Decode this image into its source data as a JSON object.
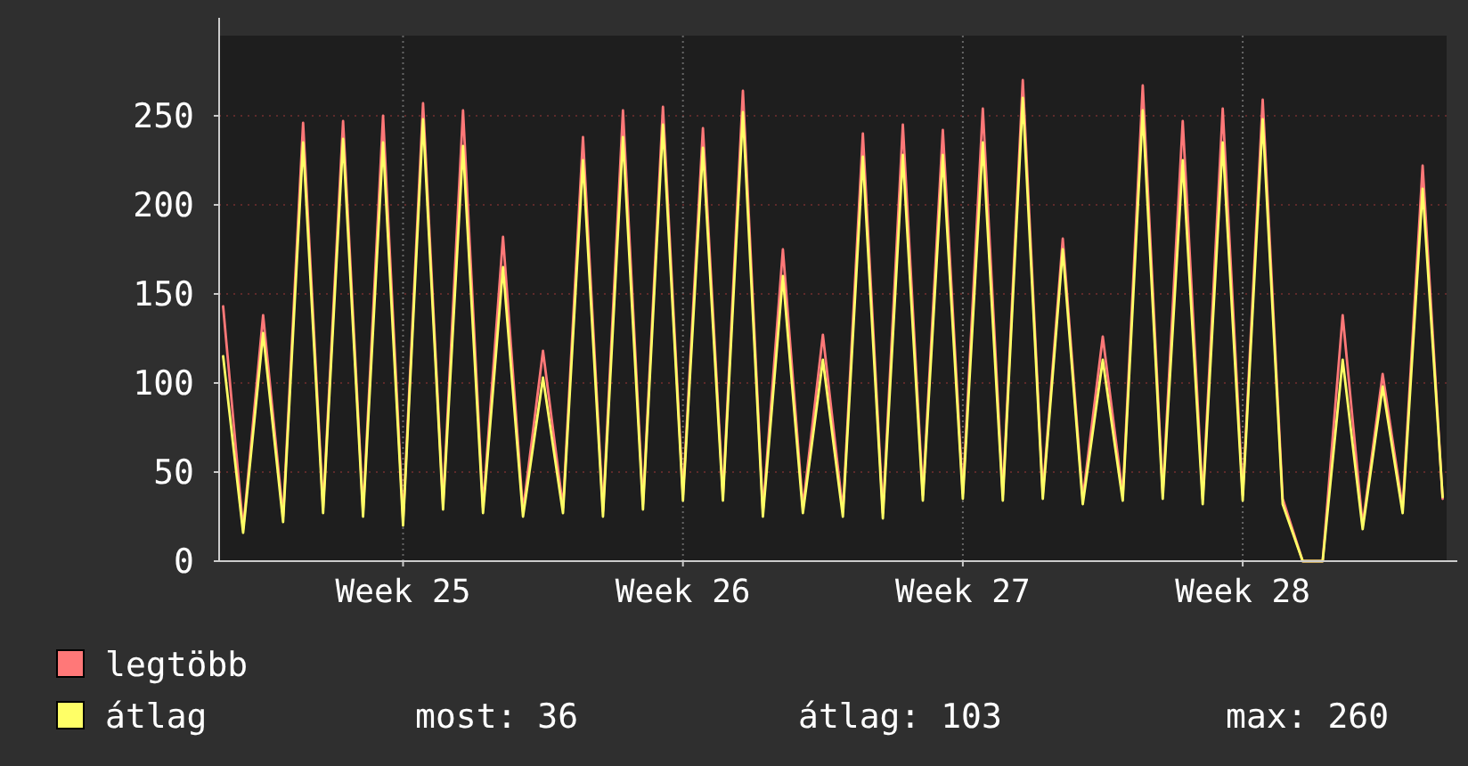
{
  "chart_data": {
    "type": "line",
    "categories": [
      null,
      null,
      null,
      null,
      null,
      null,
      null,
      null,
      null,
      "Week 25",
      null,
      null,
      null,
      null,
      null,
      null,
      null,
      null,
      null,
      null,
      null,
      null,
      null,
      "Week 26",
      null,
      null,
      null,
      null,
      null,
      null,
      null,
      null,
      null,
      null,
      null,
      null,
      null,
      "Week 27",
      null,
      null,
      null,
      null,
      null,
      null,
      null,
      null,
      null,
      null,
      null,
      null,
      null,
      "Week 28",
      null,
      null,
      null,
      null,
      null,
      null,
      null,
      null,
      null,
      null
    ],
    "series": [
      {
        "name": "legtöbb",
        "color": "#ff7878",
        "values": [
          143,
          18,
          138,
          25,
          246,
          30,
          247,
          28,
          250,
          23,
          257,
          32,
          253,
          30,
          182,
          28,
          118,
          30,
          238,
          28,
          253,
          32,
          255,
          37,
          243,
          37,
          264,
          28,
          175,
          30,
          127,
          28,
          240,
          27,
          245,
          37,
          242,
          38,
          254,
          37,
          270,
          38,
          181,
          35,
          126,
          37,
          267,
          38,
          247,
          35,
          254,
          37,
          259,
          35,
          0,
          0,
          138,
          20,
          105,
          30,
          222,
          35
        ]
      },
      {
        "name": "átlag",
        "color": "#ffff66",
        "values": [
          115,
          16,
          128,
          22,
          235,
          27,
          237,
          25,
          235,
          20,
          248,
          29,
          233,
          27,
          165,
          25,
          103,
          27,
          225,
          25,
          238,
          29,
          245,
          34,
          232,
          34,
          252,
          25,
          160,
          27,
          113,
          25,
          227,
          24,
          228,
          34,
          228,
          35,
          235,
          34,
          260,
          35,
          175,
          32,
          113,
          34,
          253,
          35,
          225,
          32,
          235,
          34,
          248,
          32,
          0,
          0,
          113,
          18,
          98,
          27,
          209,
          36
        ]
      }
    ],
    "ylim": [
      0,
      295
    ],
    "yticks": [
      0,
      50,
      100,
      150,
      200,
      250
    ],
    "grid": true,
    "legend": "bottom left",
    "annotations": [
      "most: 36",
      "átlag: 103",
      "max: 260"
    ]
  }
}
